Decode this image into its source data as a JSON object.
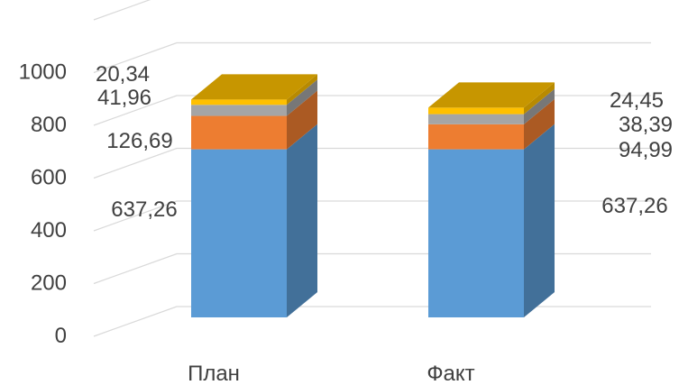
{
  "chart_data": {
    "type": "bar",
    "stacked": true,
    "style": "3d",
    "categories": [
      "План",
      "Факт"
    ],
    "series": [
      {
        "color": "#5b9bd5",
        "values": [
          637.26,
          637.26
        ],
        "labels": [
          "637,26",
          "637,26"
        ]
      },
      {
        "color": "#ed7d31",
        "values": [
          126.69,
          94.99
        ],
        "labels": [
          "126,69",
          "94,99"
        ]
      },
      {
        "color": "#a5a5a5",
        "values": [
          41.96,
          38.39
        ],
        "labels": [
          "41,96",
          "38,39"
        ]
      },
      {
        "color": "#ffc000",
        "values": [
          20.34,
          24.45
        ],
        "labels": [
          "20,34",
          "24,45"
        ]
      }
    ],
    "y_ticks": [
      "0",
      "200",
      "400",
      "600",
      "800",
      "1000"
    ],
    "ylim": [
      0,
      1200
    ],
    "grid": true,
    "legend": "none"
  }
}
